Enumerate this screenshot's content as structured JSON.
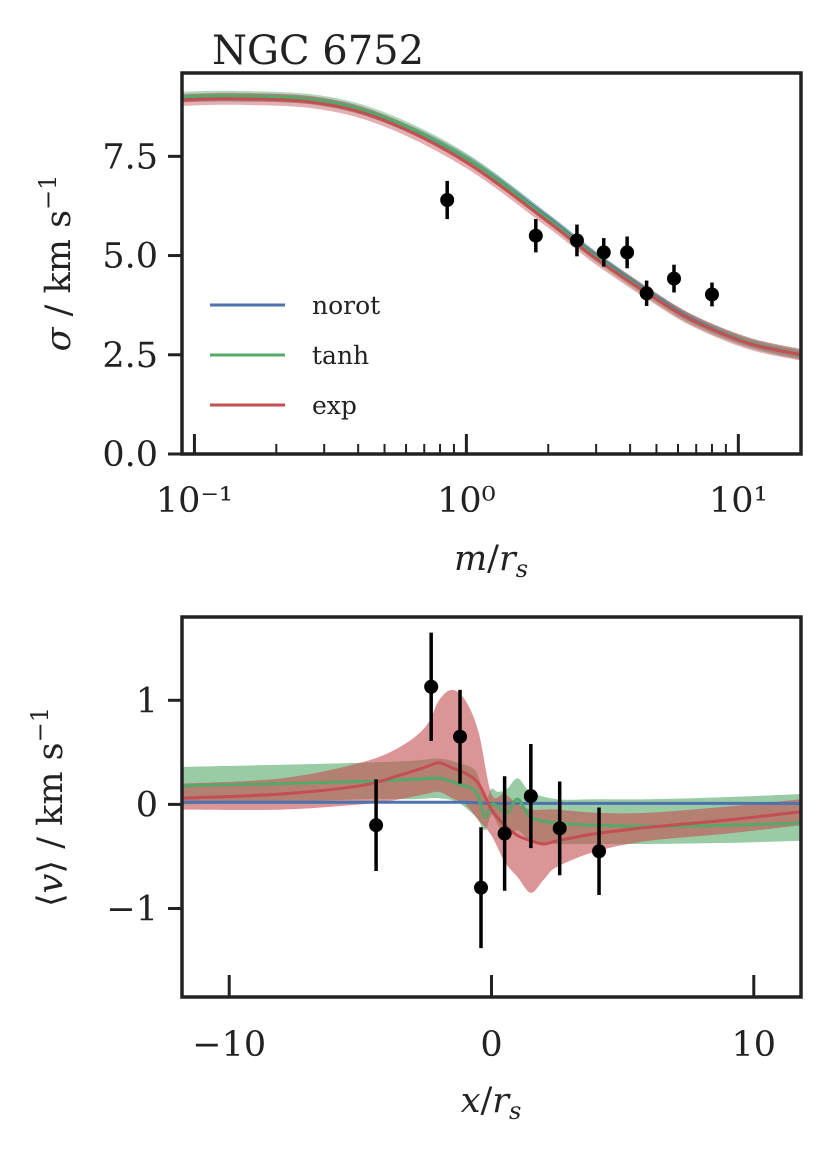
{
  "chart_data": [
    {
      "type": "line",
      "title": "NGC 6752",
      "xlabel": "m/r_s",
      "ylabel": "σ / km s⁻¹",
      "x_scale": "log",
      "xlim": [
        0.09,
        17
      ],
      "ylim": [
        0,
        9.6
      ],
      "x_tick_labels": [
        "10⁻¹",
        "10⁰",
        "10¹"
      ],
      "y_tick_labels": [
        "0.0",
        "2.5",
        "5.0",
        "7.5"
      ],
      "y_ticks": [
        0,
        2.5,
        5.0,
        7.5
      ],
      "legend": {
        "position": "lower-left",
        "entries": [
          "norot",
          "tanh",
          "exp"
        ]
      },
      "grid": false,
      "series": [
        {
          "name": "norot",
          "color": "#4c72b0",
          "x": [
            0.09,
            0.14,
            0.28,
            0.5,
            1.0,
            2.0,
            3.0,
            5.0,
            7.0,
            11.0,
            17.0
          ],
          "y": [
            8.96,
            8.98,
            8.9,
            8.45,
            7.45,
            5.95,
            5.0,
            3.95,
            3.35,
            2.8,
            2.5
          ],
          "band": 0.1
        },
        {
          "name": "tanh",
          "color": "#55a868",
          "x": [
            0.09,
            0.14,
            0.28,
            0.5,
            1.0,
            2.0,
            3.0,
            5.0,
            7.0,
            11.0,
            17.0
          ],
          "y": [
            9.0,
            9.02,
            8.92,
            8.48,
            7.45,
            5.92,
            4.97,
            3.92,
            3.33,
            2.8,
            2.5
          ],
          "band": 0.13
        },
        {
          "name": "exp",
          "color": "#c44e52",
          "x": [
            0.09,
            0.14,
            0.28,
            0.5,
            1.0,
            2.0,
            3.0,
            5.0,
            7.0,
            11.0,
            17.0
          ],
          "y": [
            8.92,
            8.95,
            8.85,
            8.4,
            7.35,
            5.85,
            4.92,
            3.9,
            3.32,
            2.78,
            2.5
          ],
          "band": 0.15
        }
      ],
      "points": {
        "x": [
          0.85,
          1.8,
          2.55,
          3.2,
          3.9,
          4.6,
          5.8,
          8.0
        ],
        "y": [
          6.4,
          5.5,
          5.38,
          5.08,
          5.08,
          4.05,
          4.42,
          4.02
        ],
        "err": [
          0.48,
          0.42,
          0.4,
          0.36,
          0.4,
          0.32,
          0.35,
          0.3
        ]
      }
    },
    {
      "type": "line",
      "title": "",
      "xlabel": "x/r_s",
      "ylabel": "⟨v⟩ / km s⁻¹",
      "xlim": [
        -11.8,
        11.8
      ],
      "ylim": [
        -1.85,
        1.8
      ],
      "x_tick_labels": [
        "−10",
        "0",
        "10"
      ],
      "x_ticks": [
        -10,
        0,
        10
      ],
      "y_tick_labels": [
        "−1",
        "0",
        "1"
      ],
      "y_ticks": [
        -1,
        0,
        1
      ],
      "grid": false,
      "series": [
        {
          "name": "norot",
          "color": "#4c72b0",
          "x": [
            -11.8,
            -6,
            -2,
            -1,
            0,
            1,
            2,
            6,
            11.8
          ],
          "y": [
            0.02,
            0.02,
            0.02,
            0.02,
            0.01,
            0.01,
            0.01,
            0.01,
            0.01
          ],
          "lower": [
            0.0,
            0.0,
            0.0,
            0.0,
            0.0,
            0.0,
            0.0,
            0.0,
            0.0
          ],
          "upper": [
            0.04,
            0.04,
            0.04,
            0.04,
            0.03,
            0.03,
            0.03,
            0.03,
            0.03
          ]
        },
        {
          "name": "tanh",
          "color": "#55a868",
          "x": [
            -11.8,
            -8,
            -5,
            -3,
            -2,
            -1.3,
            -0.6,
            -0.25,
            0.0,
            0.25,
            0.6,
            1.0,
            1.5,
            2.5,
            4,
            6,
            9,
            11.8
          ],
          "y": [
            0.18,
            0.2,
            0.22,
            0.24,
            0.25,
            0.2,
            0.12,
            -0.12,
            0.0,
            -0.02,
            -0.08,
            0.05,
            -0.12,
            -0.18,
            -0.2,
            -0.21,
            -0.2,
            -0.18
          ],
          "lower": [
            0.0,
            0.02,
            0.05,
            0.05,
            0.06,
            0.02,
            -0.12,
            -0.25,
            -0.1,
            -0.2,
            -0.32,
            -0.25,
            -0.35,
            -0.38,
            -0.38,
            -0.38,
            -0.37,
            -0.35
          ],
          "upper": [
            0.36,
            0.38,
            0.4,
            0.42,
            0.44,
            0.4,
            0.32,
            0.05,
            0.15,
            0.12,
            0.15,
            0.25,
            0.12,
            0.05,
            0.05,
            0.05,
            0.07,
            0.1
          ]
        },
        {
          "name": "exp",
          "color": "#c44e52",
          "x": [
            -11.8,
            -8,
            -5,
            -3.5,
            -2.5,
            -2.0,
            -1.5,
            -1.0,
            -0.5,
            0.0,
            0.5,
            1.0,
            1.5,
            2.0,
            2.5,
            4,
            6,
            9,
            11.8
          ],
          "y": [
            0.06,
            0.1,
            0.18,
            0.28,
            0.36,
            0.4,
            0.35,
            0.3,
            0.2,
            -0.05,
            -0.2,
            -0.3,
            -0.35,
            -0.38,
            -0.35,
            -0.28,
            -0.22,
            -0.15,
            -0.07
          ],
          "lower": [
            -0.05,
            -0.05,
            0.0,
            0.05,
            0.1,
            0.12,
            0.06,
            0.0,
            -0.15,
            -0.3,
            -0.55,
            -0.7,
            -0.85,
            -0.72,
            -0.6,
            -0.45,
            -0.35,
            -0.28,
            -0.2
          ],
          "upper": [
            0.2,
            0.25,
            0.4,
            0.55,
            0.75,
            1.0,
            1.1,
            1.0,
            0.7,
            0.1,
            0.1,
            0.0,
            -0.05,
            -0.05,
            -0.05,
            -0.08,
            -0.08,
            -0.02,
            0.05
          ]
        }
      ],
      "points": {
        "x": [
          -4.4,
          -2.3,
          -1.2,
          -0.4,
          0.5,
          1.5,
          2.6,
          4.1
        ],
        "y": [
          -0.2,
          1.13,
          0.65,
          -0.8,
          -0.28,
          0.08,
          -0.23,
          -0.45
        ],
        "err": [
          0.44,
          0.52,
          0.45,
          0.58,
          0.55,
          0.5,
          0.45,
          0.42
        ]
      }
    }
  ]
}
